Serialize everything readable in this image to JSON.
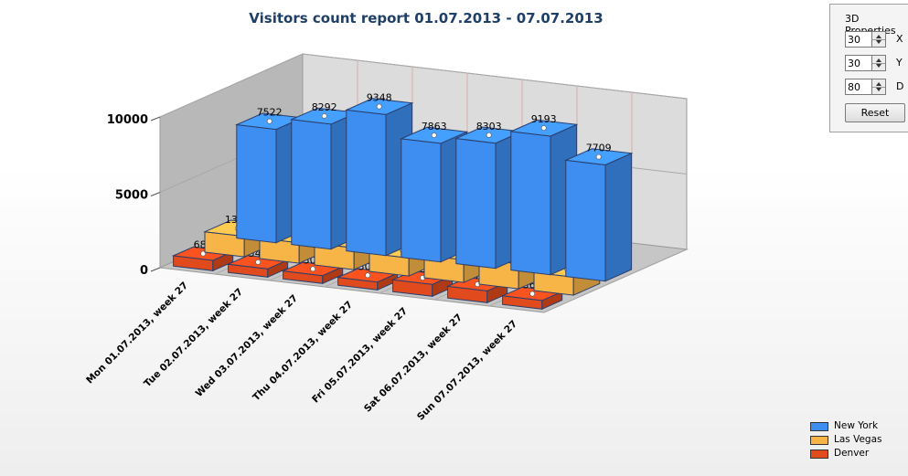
{
  "chart_data": {
    "type": "bar",
    "title": "Visitors count report 01.07.2013 - 07.07.2013",
    "categories": [
      "Mon 01.07.2013,  week 27",
      "Tue 02.07.2013,  week 27",
      "Wed 03.07.2013,  week 27",
      "Thu 04.07.2013,  week 27",
      "Fri 05.07.2013,  week 27",
      "Sat 06.07.2013,  week 27",
      "Sun 07.07.2013,  week 27"
    ],
    "series": [
      {
        "name": "New York",
        "values": [
          7522,
          8292,
          9348,
          7863,
          8303,
          9193,
          7709
        ],
        "color": "#3d8ef0"
      },
      {
        "name": "Las Vegas",
        "values": [
          1354,
          1350,
          1443,
          1194,
          1496,
          1652,
          1202
        ],
        "color": "#f7b548"
      },
      {
        "name": "Denver",
        "values": [
          685,
          544,
          502,
          506,
          783,
          777,
          568
        ],
        "color": "#e04a1c"
      }
    ],
    "yticks": [
      "0",
      "5000",
      "10000"
    ],
    "ylim": [
      0,
      10000
    ],
    "legend_position": "bottom-right",
    "grid": true
  },
  "properties_panel": {
    "title": "3D Properties",
    "x_value": "30",
    "x_label": "X",
    "y_value": "30",
    "y_label": "Y",
    "d_value": "80",
    "d_label": "D",
    "reset_label": "Reset"
  }
}
